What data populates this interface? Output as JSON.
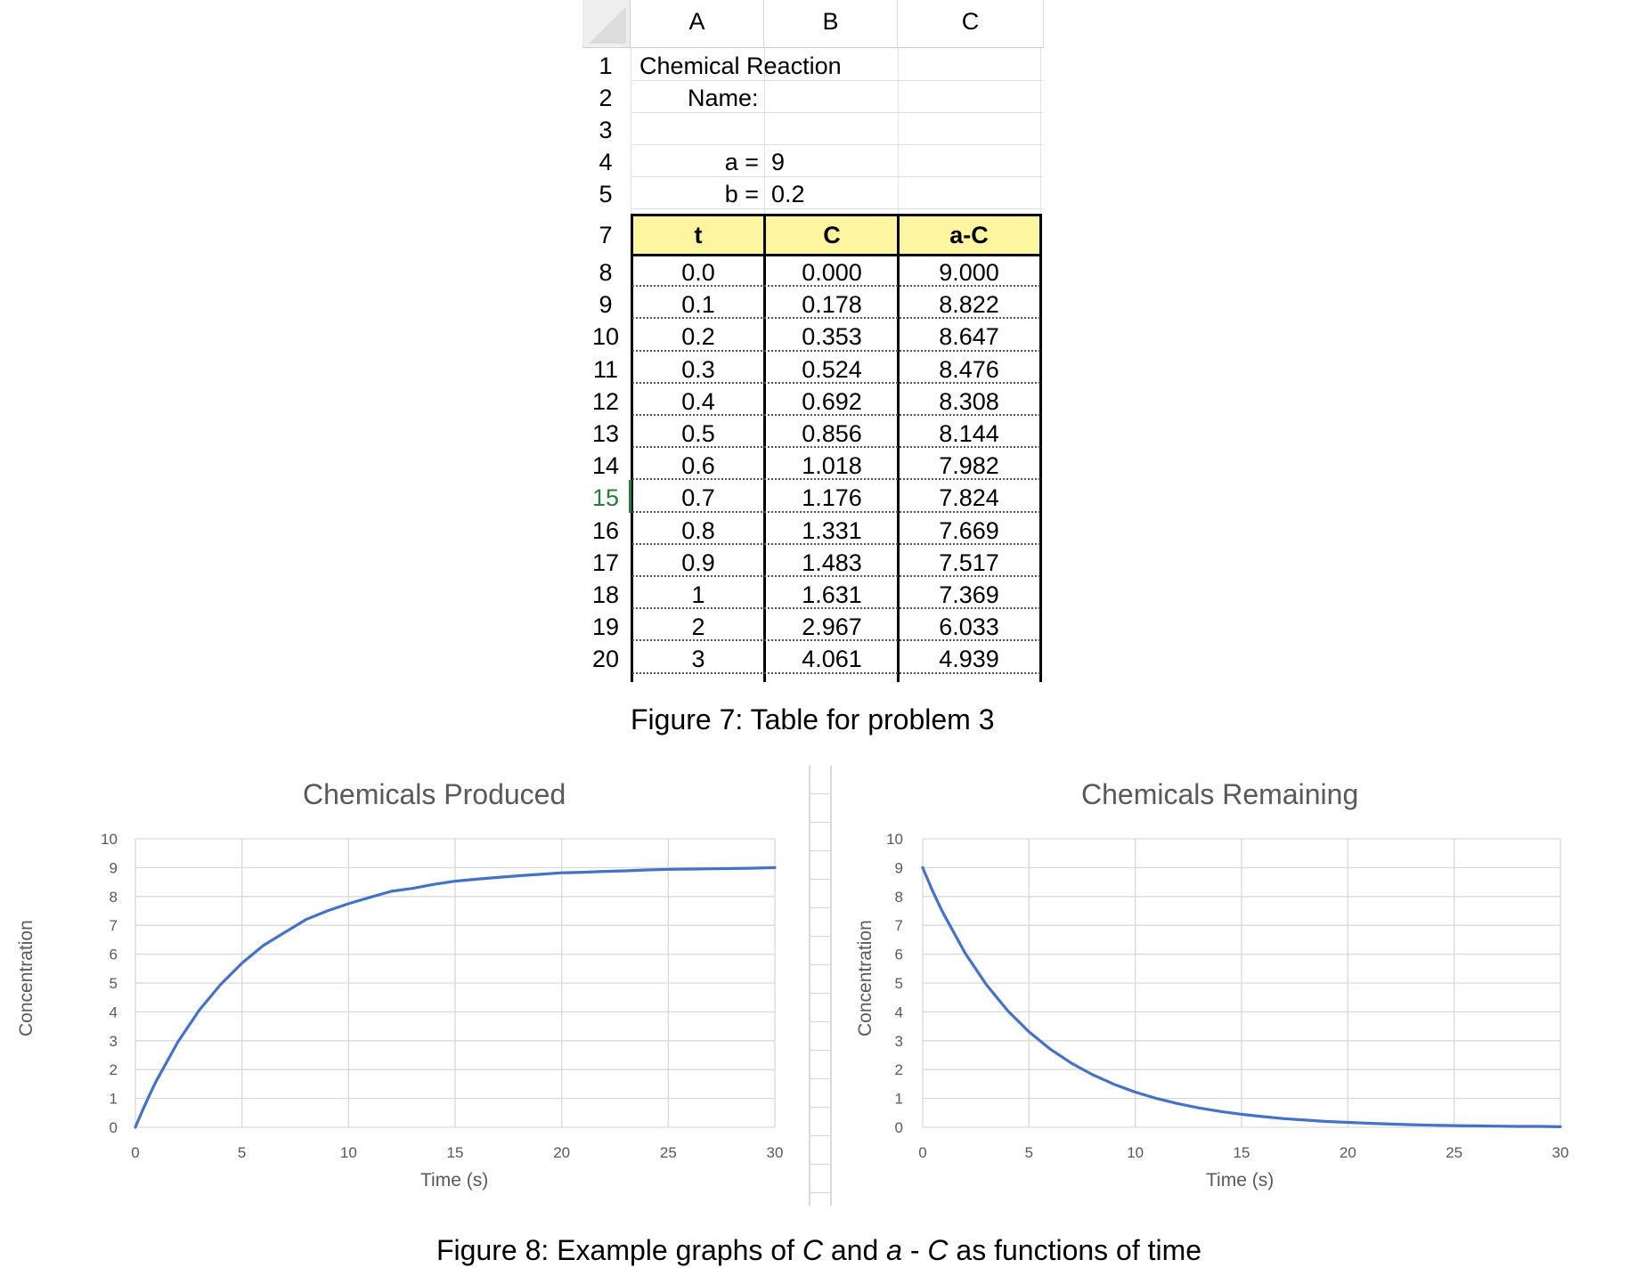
{
  "spreadsheet": {
    "columns": [
      "A",
      "B",
      "C"
    ],
    "title": "Chemical Reaction",
    "name_label": "Name:",
    "a_label": "a =",
    "a_value": "9",
    "b_label": "b =",
    "b_value": "0.2",
    "top_row_numbers": [
      "1",
      "2",
      "3",
      "4",
      "5"
    ],
    "header_row_number": "7",
    "headers": [
      "t",
      "C",
      "a-C"
    ],
    "selected_row": "15",
    "rows": [
      {
        "num": "8",
        "t": "0.0",
        "c": "0.000",
        "ac": "9.000"
      },
      {
        "num": "9",
        "t": "0.1",
        "c": "0.178",
        "ac": "8.822"
      },
      {
        "num": "10",
        "t": "0.2",
        "c": "0.353",
        "ac": "8.647"
      },
      {
        "num": "11",
        "t": "0.3",
        "c": "0.524",
        "ac": "8.476"
      },
      {
        "num": "12",
        "t": "0.4",
        "c": "0.692",
        "ac": "8.308"
      },
      {
        "num": "13",
        "t": "0.5",
        "c": "0.856",
        "ac": "8.144"
      },
      {
        "num": "14",
        "t": "0.6",
        "c": "1.018",
        "ac": "7.982"
      },
      {
        "num": "15",
        "t": "0.7",
        "c": "1.176",
        "ac": "7.824"
      },
      {
        "num": "16",
        "t": "0.8",
        "c": "1.331",
        "ac": "7.669"
      },
      {
        "num": "17",
        "t": "0.9",
        "c": "1.483",
        "ac": "7.517"
      },
      {
        "num": "18",
        "t": "1",
        "c": "1.631",
        "ac": "7.369"
      },
      {
        "num": "19",
        "t": "2",
        "c": "2.967",
        "ac": "6.033"
      },
      {
        "num": "20",
        "t": "3",
        "c": "4.061",
        "ac": "4.939"
      }
    ]
  },
  "figure7_caption": "Figure 7:  Table for problem 3",
  "figure8_caption": {
    "prefix": "Figure 8:  Example graphs of ",
    "var_c": "C",
    "mid": " and ",
    "var_a": "a",
    "dash": " - ",
    "var_c2": "C",
    "suffix": " as functions of time"
  },
  "colors": {
    "line": "#4472c4",
    "grid": "#d9d9d9",
    "header_fill": "#fdf5a0",
    "selected_row": "#2b7a3e"
  },
  "chart_data": [
    {
      "type": "line",
      "title": "Chemicals Produced",
      "xlabel": "Time (s)",
      "ylabel": "Concentration",
      "xlim": [
        0,
        30
      ],
      "ylim": [
        0,
        10
      ],
      "xticks": [
        0,
        5,
        10,
        15,
        20,
        25,
        30
      ],
      "yticks": [
        0,
        1,
        2,
        3,
        4,
        5,
        6,
        7,
        8,
        9,
        10
      ],
      "grid": true,
      "series": [
        {
          "x": [
            0,
            0.1,
            0.2,
            0.3,
            0.4,
            0.5,
            0.6,
            0.7,
            0.8,
            0.9,
            1,
            2,
            3,
            4,
            5,
            6,
            7,
            8,
            9,
            10,
            11,
            12,
            13,
            14,
            15,
            16,
            17,
            18,
            19,
            20,
            21,
            22,
            23,
            24,
            25,
            26,
            27,
            28,
            29,
            30
          ],
          "y": [
            0,
            0.178,
            0.353,
            0.524,
            0.692,
            0.856,
            1.018,
            1.176,
            1.331,
            1.483,
            1.631,
            2.967,
            4.061,
            4.95,
            5.69,
            6.3,
            6.75,
            7.2,
            7.5,
            7.75,
            7.97,
            8.18,
            8.28,
            8.42,
            8.53,
            8.6,
            8.66,
            8.72,
            8.77,
            8.82,
            8.84,
            8.87,
            8.89,
            8.92,
            8.94,
            8.95,
            8.96,
            8.97,
            8.98,
            9.0
          ]
        }
      ]
    },
    {
      "type": "line",
      "title": "Chemicals Remaining",
      "xlabel": "Time (s)",
      "ylabel": "Concentration",
      "xlim": [
        0,
        30
      ],
      "ylim": [
        0,
        10
      ],
      "xticks": [
        0,
        5,
        10,
        15,
        20,
        25,
        30
      ],
      "yticks": [
        0,
        1,
        2,
        3,
        4,
        5,
        6,
        7,
        8,
        9,
        10
      ],
      "grid": true,
      "series": [
        {
          "x": [
            0,
            0.1,
            0.2,
            0.3,
            0.4,
            0.5,
            0.6,
            0.7,
            0.8,
            0.9,
            1,
            2,
            3,
            4,
            5,
            6,
            7,
            8,
            9,
            10,
            11,
            12,
            13,
            14,
            15,
            16,
            17,
            18,
            19,
            20,
            21,
            22,
            23,
            24,
            25,
            26,
            27,
            28,
            29,
            30
          ],
          "y": [
            9.0,
            8.822,
            8.647,
            8.476,
            8.308,
            8.144,
            7.982,
            7.824,
            7.669,
            7.517,
            7.369,
            6.033,
            4.939,
            4.04,
            3.31,
            2.71,
            2.22,
            1.82,
            1.49,
            1.22,
            1.0,
            0.82,
            0.67,
            0.55,
            0.45,
            0.37,
            0.3,
            0.25,
            0.2,
            0.17,
            0.14,
            0.11,
            0.09,
            0.07,
            0.06,
            0.05,
            0.04,
            0.03,
            0.03,
            0.02
          ]
        }
      ]
    }
  ]
}
